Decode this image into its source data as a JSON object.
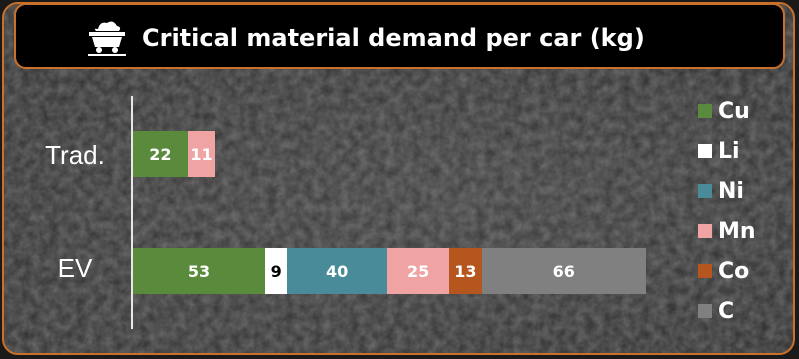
{
  "header": {
    "title": "Critical material demand per car (kg)",
    "icon": "mine-cart-icon"
  },
  "chart_data": {
    "type": "bar",
    "orientation": "horizontal",
    "stacked": true,
    "title": "Critical material demand per car (kg)",
    "xlabel": "",
    "ylabel": "",
    "categories": [
      "Trad.",
      "EV"
    ],
    "series": [
      {
        "name": "Cu",
        "color": "#5a8a3c",
        "label_color": "#ffffff",
        "values": [
          22,
          53
        ]
      },
      {
        "name": "Li",
        "color": "#ffffff",
        "label_color": "#000000",
        "values": [
          null,
          9
        ]
      },
      {
        "name": "Ni",
        "color": "#4a8b9a",
        "label_color": "#ffffff",
        "values": [
          null,
          40
        ]
      },
      {
        "name": "Mn",
        "color": "#f0a3a3",
        "label_color": "#ffffff",
        "values": [
          11,
          25
        ]
      },
      {
        "name": "Co",
        "color": "#b5561e",
        "label_color": "#ffffff",
        "values": [
          null,
          13
        ]
      },
      {
        "name": "C",
        "color": "#808080",
        "label_color": "#ffffff",
        "values": [
          null,
          66
        ]
      }
    ],
    "xlim": [
      0,
      206
    ],
    "grid": false,
    "legend_position": "right"
  }
}
